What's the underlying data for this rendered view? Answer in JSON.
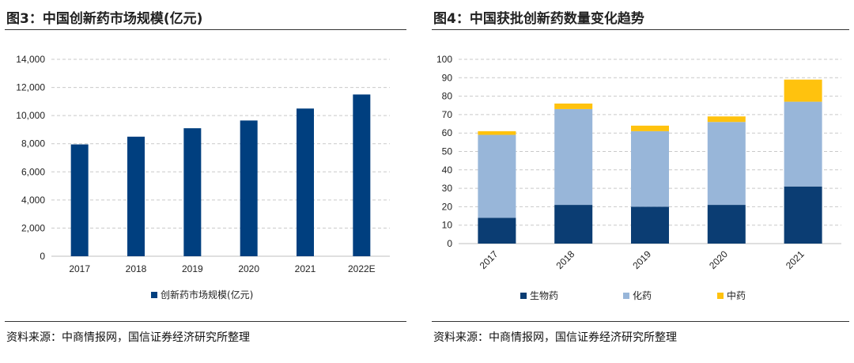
{
  "figures": [
    {
      "title": "图3：中国创新药市场规模(亿元)",
      "source": "资料来源：中商情报网，国信证券经济研究所整理"
    },
    {
      "title": "图4：中国获批创新药数量变化趋势",
      "source": "资料来源：中商情报网，国信证券经济研究所整理"
    }
  ],
  "chart_data": [
    {
      "type": "bar",
      "categories": [
        "2017",
        "2018",
        "2019",
        "2020",
        "2021",
        "2022E"
      ],
      "series": [
        {
          "name": "创新药市场规模(亿元)",
          "values": [
            7950,
            8500,
            9100,
            9650,
            10500,
            11500
          ],
          "color": "#003f7f"
        }
      ],
      "yticks": [
        "0",
        "2,000",
        "4,000",
        "6,000",
        "8,000",
        "10,000",
        "12,000",
        "14,000"
      ],
      "ylim": [
        0,
        14000
      ],
      "grid": true,
      "legend": "bottom"
    },
    {
      "type": "bar",
      "stacked": true,
      "categories": [
        "2017",
        "2018",
        "2019",
        "2020",
        "2021"
      ],
      "series": [
        {
          "name": "生物药",
          "values": [
            14,
            21,
            20,
            21,
            31
          ],
          "color": "#0b3d73"
        },
        {
          "name": "化药",
          "values": [
            45,
            52,
            41,
            45,
            46
          ],
          "color": "#98b6d9"
        },
        {
          "name": "中药",
          "values": [
            2,
            3,
            3,
            3,
            12
          ],
          "color": "#ffc20e"
        }
      ],
      "yticks": [
        "0",
        "10",
        "20",
        "30",
        "40",
        "50",
        "60",
        "70",
        "80",
        "90",
        "100"
      ],
      "ylim": [
        0,
        100
      ],
      "grid": true,
      "legend": "bottom"
    }
  ]
}
